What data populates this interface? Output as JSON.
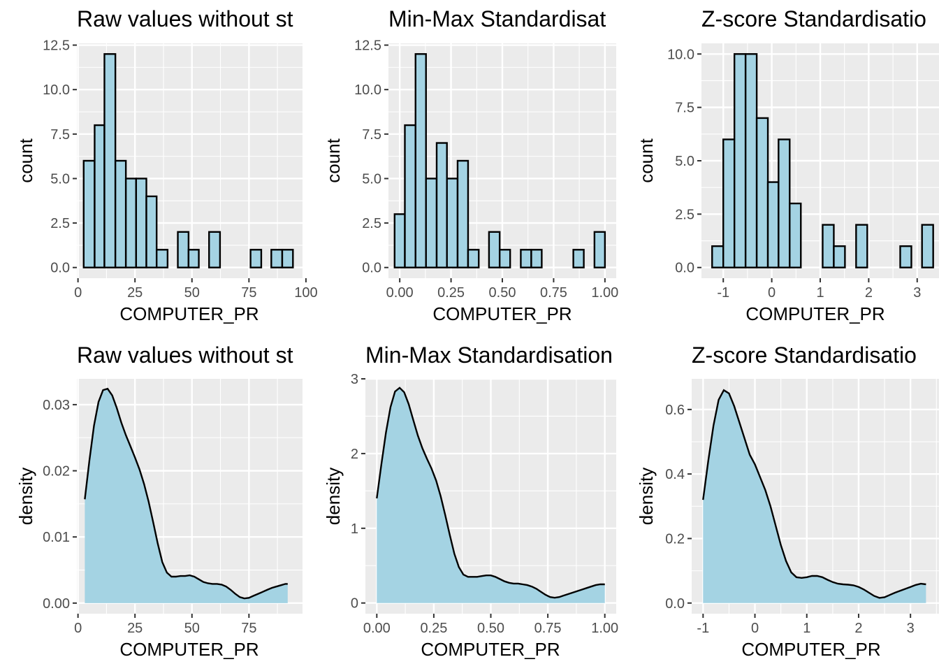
{
  "chart_data": [
    {
      "id": "p1",
      "type": "bar",
      "title": "Raw values without st",
      "xlabel": "COMPUTER_PR",
      "ylabel": "count",
      "xlim": [
        -0.5,
        98.5
      ],
      "ylim": [
        -0.6,
        12.6
      ],
      "xbreaks": [
        0,
        25,
        50,
        75,
        100
      ],
      "xbreak_labels": [
        "0",
        "25",
        "50",
        "75",
        "100"
      ],
      "ybreaks": [
        0,
        2.5,
        5,
        7.5,
        10,
        12.5
      ],
      "ybreak_labels": [
        "0.0",
        "2.5",
        "5.0",
        "7.5",
        "10.0",
        "12.5"
      ],
      "bins": [
        {
          "x0": 2.5,
          "x1": 7.3,
          "count": 6
        },
        {
          "x0": 7.3,
          "x1": 11.6,
          "count": 8
        },
        {
          "x0": 11.6,
          "x1": 16.4,
          "count": 12
        },
        {
          "x0": 16.4,
          "x1": 21.0,
          "count": 6
        },
        {
          "x0": 21.0,
          "x1": 25.5,
          "count": 5
        },
        {
          "x0": 25.5,
          "x1": 30.0,
          "count": 5
        },
        {
          "x0": 30.0,
          "x1": 34.5,
          "count": 4
        },
        {
          "x0": 34.5,
          "x1": 39.3,
          "count": 1
        },
        {
          "x0": 43.8,
          "x1": 48.5,
          "count": 2
        },
        {
          "x0": 48.5,
          "x1": 53.0,
          "count": 1
        },
        {
          "x0": 57.5,
          "x1": 62.3,
          "count": 2
        },
        {
          "x0": 75.7,
          "x1": 80.4,
          "count": 1
        },
        {
          "x0": 84.8,
          "x1": 89.6,
          "count": 1
        },
        {
          "x0": 89.6,
          "x1": 94.3,
          "count": 1
        }
      ]
    },
    {
      "id": "p2",
      "type": "bar",
      "title": "Min-Max Standardisat",
      "xlabel": "COMPUTER_PR",
      "ylabel": "count",
      "xlim": [
        -0.055,
        1.055
      ],
      "ylim": [
        -0.6,
        12.6
      ],
      "xbreaks": [
        0,
        0.25,
        0.5,
        0.75,
        1.0
      ],
      "xbreak_labels": [
        "0.00",
        "0.25",
        "0.50",
        "0.75",
        "1.00"
      ],
      "ybreaks": [
        0,
        2.5,
        5,
        7.5,
        10,
        12.5
      ],
      "ybreak_labels": [
        "0.0",
        "2.5",
        "5.0",
        "7.5",
        "10.0",
        "12.5"
      ],
      "bins": [
        {
          "x0": -0.025,
          "x1": 0.025,
          "count": 3
        },
        {
          "x0": 0.025,
          "x1": 0.077,
          "count": 8
        },
        {
          "x0": 0.077,
          "x1": 0.128,
          "count": 12
        },
        {
          "x0": 0.128,
          "x1": 0.18,
          "count": 5
        },
        {
          "x0": 0.18,
          "x1": 0.23,
          "count": 7
        },
        {
          "x0": 0.23,
          "x1": 0.282,
          "count": 5
        },
        {
          "x0": 0.282,
          "x1": 0.333,
          "count": 6
        },
        {
          "x0": 0.333,
          "x1": 0.385,
          "count": 1
        },
        {
          "x0": 0.435,
          "x1": 0.487,
          "count": 2
        },
        {
          "x0": 0.487,
          "x1": 0.538,
          "count": 1
        },
        {
          "x0": 0.59,
          "x1": 0.641,
          "count": 1
        },
        {
          "x0": 0.641,
          "x1": 0.692,
          "count": 1
        },
        {
          "x0": 0.846,
          "x1": 0.897,
          "count": 1
        },
        {
          "x0": 0.949,
          "x1": 1.0,
          "count": 2
        }
      ]
    },
    {
      "id": "p3",
      "type": "bar",
      "title": "Z-score Standardisatio",
      "xlabel": "COMPUTER_PR",
      "ylabel": "count",
      "xlim": [
        -1.45,
        3.45
      ],
      "ylim": [
        -0.5,
        10.5
      ],
      "xbreaks": [
        -1,
        0,
        1,
        2,
        3
      ],
      "xbreak_labels": [
        "-1",
        "0",
        "1",
        "2",
        "3"
      ],
      "ybreaks": [
        0,
        2.5,
        5,
        7.5,
        10
      ],
      "ybreak_labels": [
        "0.0",
        "2.5",
        "5.0",
        "7.5",
        "10.0"
      ],
      "bins": [
        {
          "x0": -1.23,
          "x1": -1.0,
          "count": 1
        },
        {
          "x0": -1.0,
          "x1": -0.77,
          "count": 6
        },
        {
          "x0": -0.77,
          "x1": -0.54,
          "count": 10
        },
        {
          "x0": -0.54,
          "x1": -0.31,
          "count": 10
        },
        {
          "x0": -0.31,
          "x1": -0.08,
          "count": 7
        },
        {
          "x0": -0.08,
          "x1": 0.14,
          "count": 4
        },
        {
          "x0": 0.14,
          "x1": 0.37,
          "count": 6
        },
        {
          "x0": 0.37,
          "x1": 0.6,
          "count": 3
        },
        {
          "x0": 1.05,
          "x1": 1.28,
          "count": 2
        },
        {
          "x0": 1.28,
          "x1": 1.51,
          "count": 1
        },
        {
          "x0": 1.74,
          "x1": 1.97,
          "count": 2
        },
        {
          "x0": 2.65,
          "x1": 2.88,
          "count": 1
        },
        {
          "x0": 3.1,
          "x1": 3.33,
          "count": 2
        }
      ]
    },
    {
      "id": "p4",
      "type": "area",
      "title": "Raw values without st",
      "xlabel": "COMPUTER_PR",
      "ylabel": "density",
      "xlim": [
        -0.5,
        98.5
      ],
      "ylim": [
        -0.0016,
        0.0339
      ],
      "xbreaks": [
        0,
        25,
        50,
        75
      ],
      "xbreak_labels": [
        "0",
        "25",
        "50",
        "75"
      ],
      "ybreaks": [
        0,
        0.01,
        0.02,
        0.03
      ],
      "ybreak_labels": [
        "0.00",
        "0.01",
        "0.02",
        "0.03"
      ],
      "x": [
        3,
        5,
        7,
        9,
        11,
        13,
        15,
        17,
        19,
        21,
        23,
        25,
        27,
        29,
        31,
        33,
        35,
        37,
        39,
        41,
        43,
        45,
        47,
        49,
        51,
        53,
        55,
        57,
        59,
        61,
        63,
        65,
        67,
        69,
        71,
        73,
        75,
        77,
        79,
        81,
        83,
        85,
        87,
        89,
        91,
        92
      ],
      "y": [
        0.0157,
        0.0215,
        0.0268,
        0.0304,
        0.0322,
        0.0324,
        0.0314,
        0.0295,
        0.0273,
        0.0254,
        0.0237,
        0.022,
        0.0202,
        0.018,
        0.0153,
        0.0122,
        0.009,
        0.0062,
        0.0046,
        0.004,
        0.004,
        0.0041,
        0.0041,
        0.0042,
        0.004,
        0.0036,
        0.0032,
        0.003,
        0.0029,
        0.0029,
        0.0028,
        0.0025,
        0.002,
        0.0014,
        0.0009,
        0.0007,
        0.0008,
        0.0011,
        0.0014,
        0.0017,
        0.002,
        0.0023,
        0.0025,
        0.0027,
        0.0029,
        0.0029
      ]
    },
    {
      "id": "p5",
      "type": "area",
      "title": "Min-Max Standardisation",
      "xlabel": "COMPUTER_PR",
      "ylabel": "density",
      "xlim": [
        -0.05,
        1.05
      ],
      "ylim": [
        -0.143,
        3.0
      ],
      "xbreaks": [
        0,
        0.25,
        0.5,
        0.75,
        1.0
      ],
      "xbreak_labels": [
        "0.00",
        "0.25",
        "0.50",
        "0.75",
        "1.00"
      ],
      "ybreaks": [
        0,
        1,
        2,
        3
      ],
      "ybreak_labels": [
        "0",
        "1",
        "2",
        "3"
      ],
      "x": [
        0.0,
        0.02,
        0.04,
        0.06,
        0.08,
        0.1,
        0.12,
        0.14,
        0.16,
        0.18,
        0.2,
        0.22,
        0.24,
        0.26,
        0.28,
        0.3,
        0.32,
        0.34,
        0.36,
        0.38,
        0.4,
        0.42,
        0.44,
        0.46,
        0.48,
        0.5,
        0.52,
        0.54,
        0.56,
        0.58,
        0.6,
        0.62,
        0.64,
        0.66,
        0.68,
        0.7,
        0.72,
        0.74,
        0.76,
        0.78,
        0.8,
        0.82,
        0.84,
        0.86,
        0.88,
        0.9,
        0.92,
        0.94,
        0.96,
        0.98,
        1.0
      ],
      "y": [
        1.4,
        1.85,
        2.28,
        2.62,
        2.83,
        2.88,
        2.82,
        2.66,
        2.45,
        2.24,
        2.07,
        1.93,
        1.8,
        1.64,
        1.43,
        1.18,
        0.91,
        0.66,
        0.48,
        0.38,
        0.35,
        0.35,
        0.35,
        0.36,
        0.37,
        0.37,
        0.35,
        0.32,
        0.29,
        0.27,
        0.26,
        0.26,
        0.25,
        0.24,
        0.22,
        0.19,
        0.15,
        0.11,
        0.08,
        0.07,
        0.08,
        0.1,
        0.12,
        0.14,
        0.16,
        0.18,
        0.2,
        0.22,
        0.24,
        0.25,
        0.25
      ]
    },
    {
      "id": "p6",
      "type": "area",
      "title": "Z-score Standardisatio",
      "xlabel": "COMPUTER_PR",
      "ylabel": "density",
      "xlim": [
        -1.22,
        3.55
      ],
      "ylim": [
        -0.033,
        0.695
      ],
      "xbreaks": [
        -1,
        0,
        1,
        2,
        3
      ],
      "xbreak_labels": [
        "-1",
        "0",
        "1",
        "2",
        "3"
      ],
      "ybreaks": [
        0,
        0.2,
        0.4,
        0.6
      ],
      "ybreak_labels": [
        "0.0",
        "0.2",
        "0.4",
        "0.6"
      ],
      "x": [
        -1.0,
        -0.9,
        -0.8,
        -0.7,
        -0.6,
        -0.5,
        -0.4,
        -0.3,
        -0.2,
        -0.1,
        0.0,
        0.1,
        0.2,
        0.3,
        0.4,
        0.5,
        0.6,
        0.7,
        0.8,
        0.9,
        1.0,
        1.1,
        1.2,
        1.3,
        1.4,
        1.5,
        1.6,
        1.7,
        1.8,
        1.9,
        2.0,
        2.1,
        2.2,
        2.3,
        2.4,
        2.5,
        2.6,
        2.7,
        2.8,
        2.9,
        3.0,
        3.1,
        3.2,
        3.3
      ],
      "y": [
        0.32,
        0.44,
        0.55,
        0.63,
        0.66,
        0.65,
        0.61,
        0.56,
        0.51,
        0.46,
        0.43,
        0.39,
        0.35,
        0.3,
        0.24,
        0.18,
        0.13,
        0.095,
        0.08,
        0.078,
        0.08,
        0.084,
        0.084,
        0.08,
        0.072,
        0.065,
        0.06,
        0.058,
        0.057,
        0.055,
        0.05,
        0.042,
        0.032,
        0.022,
        0.016,
        0.018,
        0.025,
        0.032,
        0.038,
        0.044,
        0.05,
        0.056,
        0.06,
        0.058
      ]
    }
  ]
}
